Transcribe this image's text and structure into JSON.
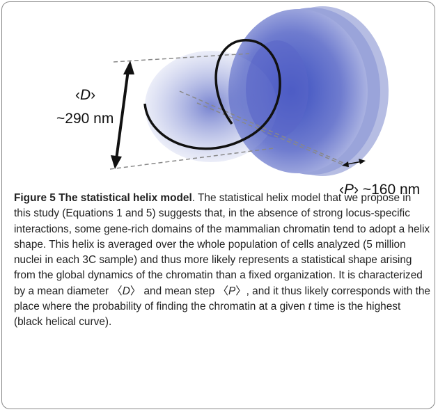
{
  "figure": {
    "labels": {
      "diameter": {
        "open": "‹",
        "symbol": "D",
        "close": "›",
        "value": "~290 nm"
      },
      "step": {
        "open": "‹",
        "symbol": "P",
        "close": "›",
        "value": "~160 nm"
      }
    }
  },
  "caption": {
    "label": "Figure 5 The statistical helix model",
    "body": [
      ". The statistical helix model that we propose in this study (Equations 1 and 5) suggests that, in the absence of strong locus-specific interactions, some gene-rich domains of the mammalian chromatin tend to adopt a helix shape. This helix is averaged over the whole population of cells analyzed (5 million nuclei in each 3C sample) and thus more likely represents a statistical shape arising from the global dynamics of the chromatin than a fixed organization. It is characterized by a mean diameter 〈",
      "D",
      "〉 and mean step 〈",
      "P",
      "〉, and it thus likely corresponds with the place where the probability of finding the chromatin at a given ",
      "t",
      " time is the highest (black helical curve)."
    ]
  }
}
